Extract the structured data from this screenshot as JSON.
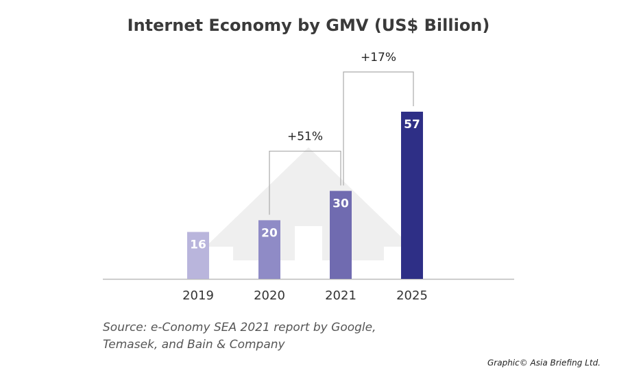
{
  "chart_data": {
    "type": "bar",
    "title": "Internet Economy by GMV (US$ Billion)",
    "categories": [
      "2019",
      "2020",
      "2021",
      "2025"
    ],
    "values": [
      16,
      20,
      30,
      57
    ],
    "colors": [
      "#b9b5dc",
      "#8f8bc6",
      "#706bb0",
      "#2e2f86"
    ],
    "annotations": [
      "+51%",
      "+17%"
    ],
    "source": [
      "Source: e-Conomy SEA 2021 report by Google,",
      "Temasek, and Bain & Company"
    ],
    "credit": "Graphic© Asia Briefing Ltd."
  }
}
